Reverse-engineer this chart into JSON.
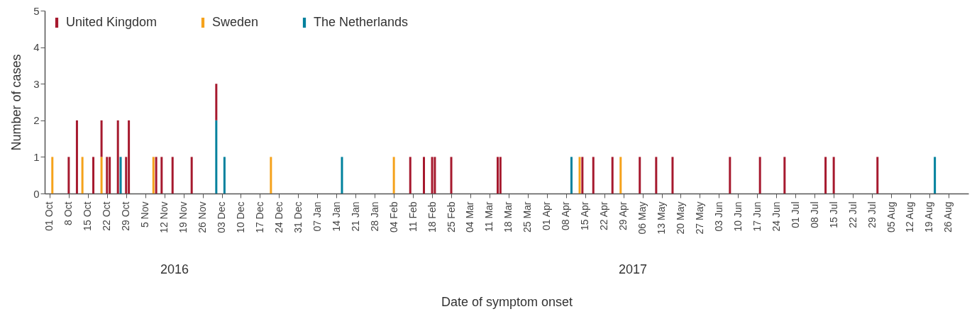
{
  "chart_data": {
    "type": "bar",
    "stacked": true,
    "xlabel": "Date of symptom onset",
    "ylabel": "Number of cases",
    "xlim": [
      "2016-09-30T12:00",
      "2017-09-01"
    ],
    "ylim": [
      0,
      5
    ],
    "yticks": [
      0,
      1,
      2,
      3,
      4,
      5
    ],
    "xticks": [
      {
        "value": "2016-10-01",
        "label": "01 Oct"
      },
      {
        "value": "2016-10-08",
        "label": "8 Oct"
      },
      {
        "value": "2016-10-15",
        "label": "15 Oct"
      },
      {
        "value": "2016-10-22",
        "label": "22 Oct"
      },
      {
        "value": "2016-10-29",
        "label": "29 Oct"
      },
      {
        "value": "2016-11-05",
        "label": "5 Nov"
      },
      {
        "value": "2016-11-12",
        "label": "12 Nov"
      },
      {
        "value": "2016-11-19",
        "label": "19 Nov"
      },
      {
        "value": "2016-11-26",
        "label": "26 Nov"
      },
      {
        "value": "2016-12-03",
        "label": "03 Dec"
      },
      {
        "value": "2016-12-10",
        "label": "10 Dec"
      },
      {
        "value": "2016-12-17",
        "label": "17 Dec"
      },
      {
        "value": "2016-12-24",
        "label": "24 Dec"
      },
      {
        "value": "2016-12-31",
        "label": "31 Dec"
      },
      {
        "value": "2017-01-07",
        "label": "07 Jan"
      },
      {
        "value": "2017-01-14",
        "label": "14 Jan"
      },
      {
        "value": "2017-01-21",
        "label": "21 Jan"
      },
      {
        "value": "2017-01-28",
        "label": "28 Jan"
      },
      {
        "value": "2017-02-04",
        "label": "04 Feb"
      },
      {
        "value": "2017-02-11",
        "label": "11 Feb"
      },
      {
        "value": "2017-02-18",
        "label": "18 Feb"
      },
      {
        "value": "2017-02-25",
        "label": "25 Feb"
      },
      {
        "value": "2017-03-04",
        "label": "04 Mar"
      },
      {
        "value": "2017-03-11",
        "label": "11 Mar"
      },
      {
        "value": "2017-03-18",
        "label": "18 Mar"
      },
      {
        "value": "2017-03-25",
        "label": "25 Mar"
      },
      {
        "value": "2017-04-01",
        "label": "01 Apr"
      },
      {
        "value": "2017-04-08",
        "label": "08 Apr"
      },
      {
        "value": "2017-04-15",
        "label": "15 Apr"
      },
      {
        "value": "2017-04-22",
        "label": "22 Apr"
      },
      {
        "value": "2017-04-29",
        "label": "29 Apr"
      },
      {
        "value": "2017-05-06",
        "label": "06 May"
      },
      {
        "value": "2017-05-13",
        "label": "13 May"
      },
      {
        "value": "2017-05-20",
        "label": "20 May"
      },
      {
        "value": "2017-05-27",
        "label": "27 May"
      },
      {
        "value": "2017-06-03",
        "label": "03 Jun"
      },
      {
        "value": "2017-06-10",
        "label": "10 Jun"
      },
      {
        "value": "2017-06-17",
        "label": "17 Jun"
      },
      {
        "value": "2017-06-24",
        "label": "24 Jun"
      },
      {
        "value": "2017-07-01",
        "label": "01 Jul"
      },
      {
        "value": "2017-07-08",
        "label": "08 Jul"
      },
      {
        "value": "2017-07-15",
        "label": "15 Jul"
      },
      {
        "value": "2017-07-22",
        "label": "22 Jul"
      },
      {
        "value": "2017-07-29",
        "label": "29 Jul"
      },
      {
        "value": "2017-08-05",
        "label": "05 Aug"
      },
      {
        "value": "2017-08-12",
        "label": "12 Aug"
      },
      {
        "value": "2017-08-19",
        "label": "19 Aug"
      },
      {
        "value": "2017-08-26",
        "label": "26 Aug"
      }
    ],
    "x": [
      "2016-10-02",
      "2016-10-08",
      "2016-10-11",
      "2016-10-13",
      "2016-10-17",
      "2016-10-20",
      "2016-10-22",
      "2016-10-23",
      "2016-10-26",
      "2016-10-27",
      "2016-10-29",
      "2016-10-30",
      "2016-11-08",
      "2016-11-09",
      "2016-11-11",
      "2016-11-15",
      "2016-11-22",
      "2016-12-01",
      "2016-12-04",
      "2016-12-21",
      "2017-01-16",
      "2017-02-04",
      "2017-02-10",
      "2017-02-15",
      "2017-02-18",
      "2017-02-19",
      "2017-02-25",
      "2017-03-14",
      "2017-03-15",
      "2017-04-10",
      "2017-04-13",
      "2017-04-14",
      "2017-04-18",
      "2017-04-25",
      "2017-04-28",
      "2017-05-05",
      "2017-05-11",
      "2017-05-17",
      "2017-06-07",
      "2017-06-18",
      "2017-06-27",
      "2017-07-12",
      "2017-07-15",
      "2017-07-31",
      "2017-08-21"
    ],
    "series": [
      {
        "name": "The Netherlands",
        "color": "#00819d",
        "values": [
          null,
          null,
          null,
          null,
          null,
          null,
          null,
          null,
          null,
          1,
          null,
          null,
          null,
          null,
          null,
          null,
          null,
          2,
          1,
          null,
          1,
          null,
          null,
          null,
          null,
          null,
          null,
          null,
          null,
          1,
          null,
          null,
          null,
          null,
          null,
          null,
          null,
          null,
          null,
          null,
          null,
          null,
          null,
          null,
          1
        ]
      },
      {
        "name": "Sweden",
        "color": "#f5a21b",
        "values": [
          1,
          null,
          null,
          1,
          null,
          1,
          null,
          null,
          null,
          null,
          null,
          null,
          1,
          null,
          null,
          null,
          null,
          null,
          null,
          1,
          null,
          1,
          null,
          null,
          null,
          null,
          null,
          null,
          null,
          null,
          1,
          null,
          null,
          null,
          1,
          null,
          null,
          null,
          null,
          null,
          null,
          null,
          null,
          null,
          null
        ]
      },
      {
        "name": "United Kingdom",
        "color": "#a6192e",
        "values": [
          null,
          1,
          2,
          null,
          1,
          1,
          1,
          1,
          2,
          null,
          1,
          2,
          null,
          1,
          1,
          1,
          1,
          1,
          null,
          null,
          null,
          null,
          1,
          1,
          1,
          1,
          1,
          1,
          1,
          null,
          null,
          1,
          1,
          1,
          null,
          1,
          1,
          1,
          1,
          1,
          1,
          1,
          1,
          1,
          null
        ]
      }
    ],
    "annotations": [
      "2016",
      "2017"
    ],
    "legend": "top left",
    "grid": false
  }
}
